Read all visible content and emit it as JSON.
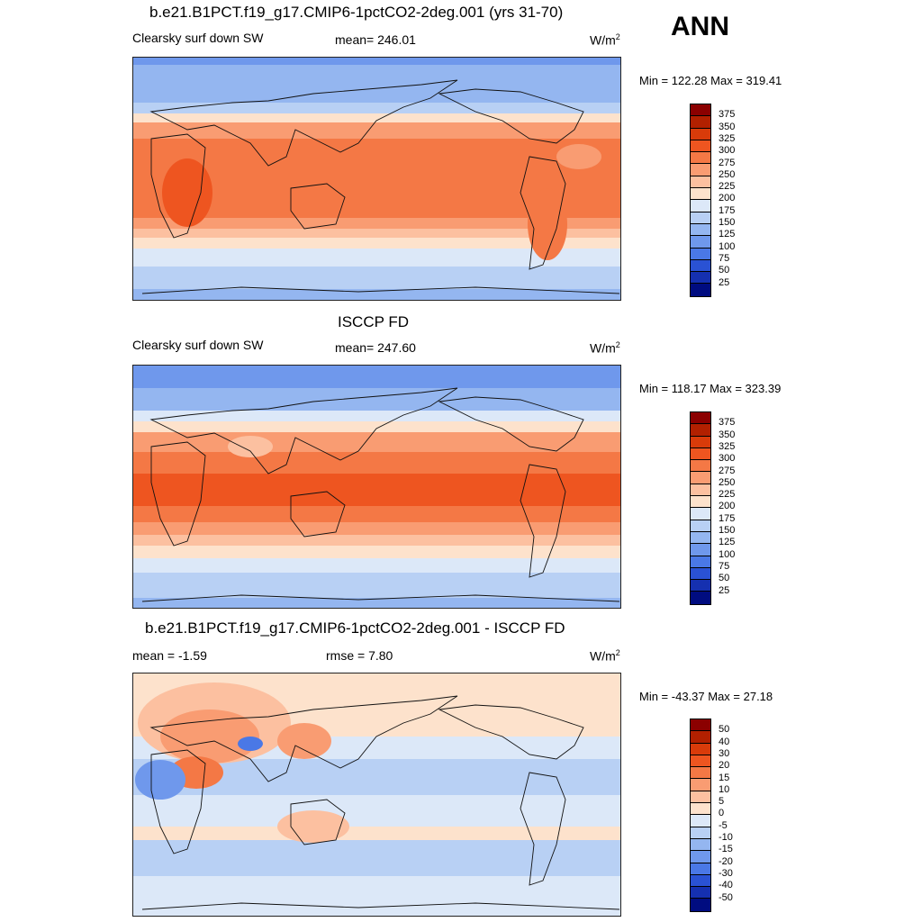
{
  "season": "ANN",
  "panels": [
    {
      "title": "b.e21.B1PCT.f19_g17.CMIP6-1pctCO2-2deg.001 (yrs 31-70)",
      "left_label": "Clearsky surf down SW",
      "center_label": "mean= 246.01",
      "units": "W/m",
      "units_sup": "2",
      "minmax": "Min = 122.28 Max = 319.41"
    },
    {
      "title": "ISCCP FD",
      "left_label": "Clearsky surf down SW",
      "center_label": "mean= 247.60",
      "units": "W/m",
      "units_sup": "2",
      "minmax": "Min = 118.17 Max = 323.39"
    },
    {
      "title": "b.e21.B1PCT.f19_g17.CMIP6-1pctCO2-2deg.001 - ISCCP FD",
      "left_label": "mean =  -1.59",
      "center_label": "rmse =   7.80",
      "units": "W/m",
      "units_sup": "2",
      "minmax": "Min = -43.37 Max =  27.18"
    }
  ],
  "colorbars": {
    "absolute": {
      "labels": [
        "375",
        "350",
        "325",
        "300",
        "275",
        "250",
        "225",
        "200",
        "175",
        "150",
        "125",
        "100",
        "75",
        "50",
        "25"
      ],
      "colors": [
        "#8b0000",
        "#b22000",
        "#d93b0a",
        "#ee5520",
        "#f47845",
        "#f99c72",
        "#fcc0a0",
        "#fde2cc",
        "#dce8f8",
        "#b8d0f4",
        "#94b6f0",
        "#6f98ec",
        "#4a78e6",
        "#2a52d4",
        "#1530b0",
        "#000c80"
      ]
    },
    "difference": {
      "labels": [
        "50",
        "40",
        "30",
        "20",
        "15",
        "10",
        "5",
        "0",
        "-5",
        "-10",
        "-15",
        "-20",
        "-30",
        "-40",
        "-50"
      ],
      "colors": [
        "#8b0000",
        "#b22000",
        "#d93b0a",
        "#ee5520",
        "#f47845",
        "#f99c72",
        "#fcc0a0",
        "#fde2cc",
        "#dce8f8",
        "#b8d0f4",
        "#94b6f0",
        "#6f98ec",
        "#4a78e6",
        "#2a52d4",
        "#1530b0",
        "#000c80"
      ]
    }
  },
  "map_colors": {
    "pole_dark": "#4a78e6",
    "pole": "#6f98ec",
    "midlat": "#94b6f0",
    "subpolar": "#b8d0f4",
    "transition": "#dce8f8",
    "neutral": "#fde2cc",
    "warm1": "#fcc0a0",
    "warm2": "#f99c72",
    "tropics": "#f47845",
    "tropics_hot": "#ee5520"
  }
}
